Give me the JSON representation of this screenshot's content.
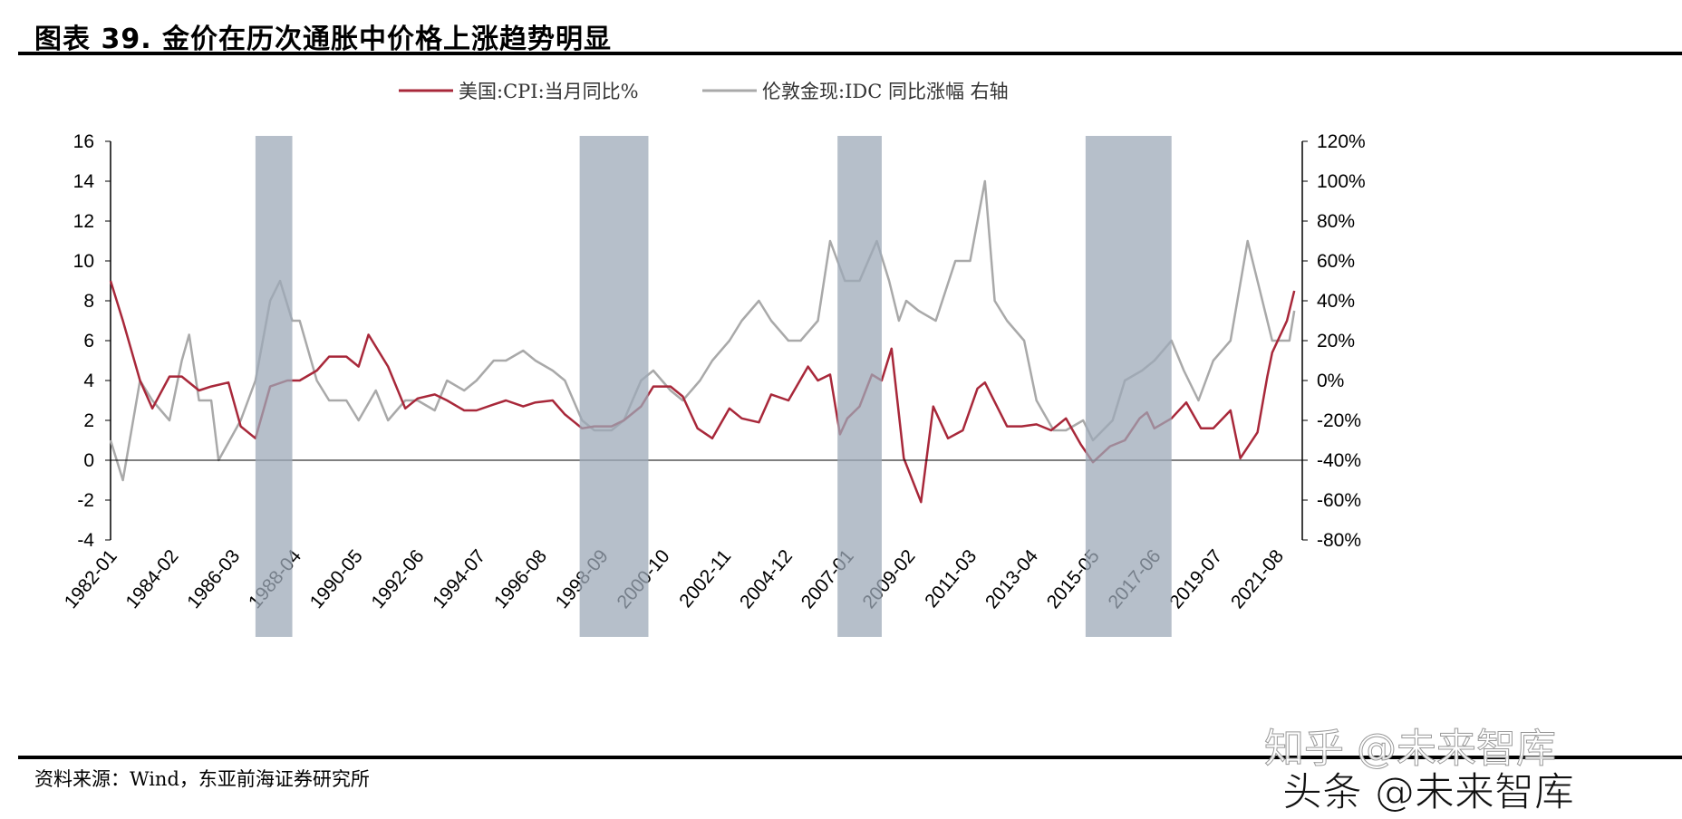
{
  "title": "图表 39. 金价在历次通胀中价格上涨趋势明显",
  "source": "资料来源：Wind，东亚前海证券研究所",
  "watermarks": [
    "知乎 @未来智库",
    "头条 @未来智库"
  ],
  "chart_data": {
    "type": "line",
    "title": "",
    "colors": {
      "cpi": "#A8283A",
      "gold": "#A9A9A9",
      "band": "#9DAAB8",
      "zero_line": "#000000"
    },
    "legend_position": "top",
    "grid": false,
    "x_ticks": [
      "1982-01",
      "1984-02",
      "1986-03",
      "1988-04",
      "1990-05",
      "1992-06",
      "1994-07",
      "1996-08",
      "1998-09",
      "2000-10",
      "2002-11",
      "2004-12",
      "2007-01",
      "2009-02",
      "2011-03",
      "2013-04",
      "2015-05",
      "2017-06",
      "2019-07",
      "2021-08"
    ],
    "y_left": {
      "ticks": [
        16,
        14,
        12,
        10,
        8,
        6,
        4,
        2,
        0,
        -2,
        -4
      ],
      "range": [
        -4,
        16
      ]
    },
    "y_right": {
      "ticks": [
        "120%",
        "100%",
        "80%",
        "60%",
        "40%",
        "20%",
        "0%",
        "-20%",
        "-40%",
        "-60%",
        "-80%"
      ],
      "range": [
        -80,
        120
      ],
      "unit": "%"
    },
    "shaded_periods": [
      [
        "1986-12",
        "1988-03"
      ],
      [
        "1997-12",
        "2000-04"
      ],
      [
        "2006-09",
        "2008-03"
      ],
      [
        "2015-02",
        "2018-01"
      ]
    ],
    "series": [
      {
        "name": "美国:CPI:当月同比%",
        "axis": "left",
        "key": "cpi",
        "x": [
          "1982-01",
          "1982-06",
          "1983-01",
          "1983-06",
          "1984-01",
          "1984-06",
          "1985-01",
          "1985-06",
          "1986-01",
          "1986-06",
          "1986-12",
          "1987-06",
          "1988-01",
          "1988-06",
          "1989-01",
          "1989-06",
          "1990-01",
          "1990-06",
          "1990-10",
          "1991-06",
          "1992-01",
          "1992-06",
          "1993-01",
          "1993-06",
          "1994-01",
          "1994-06",
          "1995-01",
          "1995-06",
          "1996-01",
          "1996-06",
          "1997-01",
          "1997-06",
          "1998-01",
          "1998-06",
          "1999-01",
          "1999-06",
          "2000-01",
          "2000-06",
          "2001-01",
          "2001-06",
          "2001-12",
          "2002-06",
          "2003-01",
          "2003-06",
          "2004-01",
          "2004-06",
          "2005-01",
          "2005-09",
          "2006-01",
          "2006-06",
          "2006-10",
          "2007-01",
          "2007-06",
          "2007-11",
          "2008-03",
          "2008-07",
          "2008-12",
          "2009-07",
          "2009-12",
          "2010-06",
          "2010-12",
          "2011-06",
          "2011-09",
          "2012-06",
          "2012-12",
          "2013-06",
          "2013-12",
          "2014-06",
          "2014-12",
          "2015-05",
          "2015-12",
          "2016-06",
          "2016-12",
          "2017-03",
          "2017-06",
          "2018-01",
          "2018-07",
          "2019-01",
          "2019-06",
          "2020-01",
          "2020-05",
          "2020-12",
          "2021-04",
          "2021-06",
          "2021-12",
          "2022-03"
        ],
        "values": [
          9.0,
          7.0,
          4.0,
          2.6,
          4.2,
          4.2,
          3.5,
          3.7,
          3.9,
          1.7,
          1.1,
          3.7,
          4.0,
          4.0,
          4.5,
          5.2,
          5.2,
          4.7,
          6.3,
          4.7,
          2.6,
          3.1,
          3.3,
          3.0,
          2.5,
          2.5,
          2.8,
          3.0,
          2.7,
          2.9,
          3.0,
          2.3,
          1.6,
          1.7,
          1.7,
          2.0,
          2.7,
          3.7,
          3.7,
          3.2,
          1.6,
          1.1,
          2.6,
          2.1,
          1.9,
          3.3,
          3.0,
          4.7,
          4.0,
          4.3,
          1.3,
          2.1,
          2.7,
          4.3,
          4.0,
          5.6,
          0.1,
          -2.1,
          2.7,
          1.1,
          1.5,
          3.6,
          3.9,
          1.7,
          1.7,
          1.8,
          1.5,
          2.1,
          0.8,
          -0.1,
          0.7,
          1.0,
          2.1,
          2.4,
          1.6,
          2.1,
          2.9,
          1.6,
          1.6,
          2.5,
          0.1,
          1.4,
          4.2,
          5.4,
          7.0,
          8.5
        ]
      },
      {
        "name": "伦敦金现:IDC 同比涨幅 右轴",
        "axis": "right",
        "key": "gold",
        "x": [
          "1982-01",
          "1982-06",
          "1983-01",
          "1983-06",
          "1984-01",
          "1984-06",
          "1984-09",
          "1985-01",
          "1985-06",
          "1985-09",
          "1986-06",
          "1986-12",
          "1987-06",
          "1987-10",
          "1988-03",
          "1988-06",
          "1989-01",
          "1989-06",
          "1990-01",
          "1990-06",
          "1991-01",
          "1991-06",
          "1992-01",
          "1992-06",
          "1993-01",
          "1993-06",
          "1994-01",
          "1994-06",
          "1995-01",
          "1995-06",
          "1996-01",
          "1996-06",
          "1997-01",
          "1997-06",
          "1998-01",
          "1998-06",
          "1999-01",
          "1999-06",
          "2000-01",
          "2000-06",
          "2001-01",
          "2001-06",
          "2002-01",
          "2002-06",
          "2003-01",
          "2003-06",
          "2004-01",
          "2004-06",
          "2005-01",
          "2005-06",
          "2006-01",
          "2006-06",
          "2006-12",
          "2007-06",
          "2008-01",
          "2008-06",
          "2008-10",
          "2009-01",
          "2009-06",
          "2010-01",
          "2010-09",
          "2011-03",
          "2011-09",
          "2012-01",
          "2012-06",
          "2013-01",
          "2013-06",
          "2014-01",
          "2014-06",
          "2015-01",
          "2015-05",
          "2016-01",
          "2016-06",
          "2017-01",
          "2017-06",
          "2018-01",
          "2018-06",
          "2018-12",
          "2019-06",
          "2020-01",
          "2020-08",
          "2021-01",
          "2021-06",
          "2022-01",
          "2022-03"
        ],
        "values": [
          -30,
          -50,
          0,
          -10,
          -20,
          10,
          23,
          -10,
          -10,
          -40,
          -20,
          0,
          40,
          50,
          30,
          30,
          0,
          -10,
          -10,
          -20,
          -5,
          -20,
          -10,
          -10,
          -15,
          0,
          -5,
          0,
          10,
          10,
          15,
          10,
          5,
          0,
          -20,
          -25,
          -25,
          -20,
          0,
          5,
          -5,
          -10,
          0,
          10,
          20,
          30,
          40,
          30,
          20,
          20,
          30,
          70,
          50,
          50,
          70,
          50,
          30,
          40,
          35,
          30,
          60,
          60,
          100,
          40,
          30,
          20,
          -10,
          -25,
          -25,
          -20,
          -30,
          -20,
          0,
          5,
          10,
          20,
          5,
          -10,
          10,
          20,
          70,
          45,
          20,
          20,
          35
        ]
      }
    ]
  }
}
